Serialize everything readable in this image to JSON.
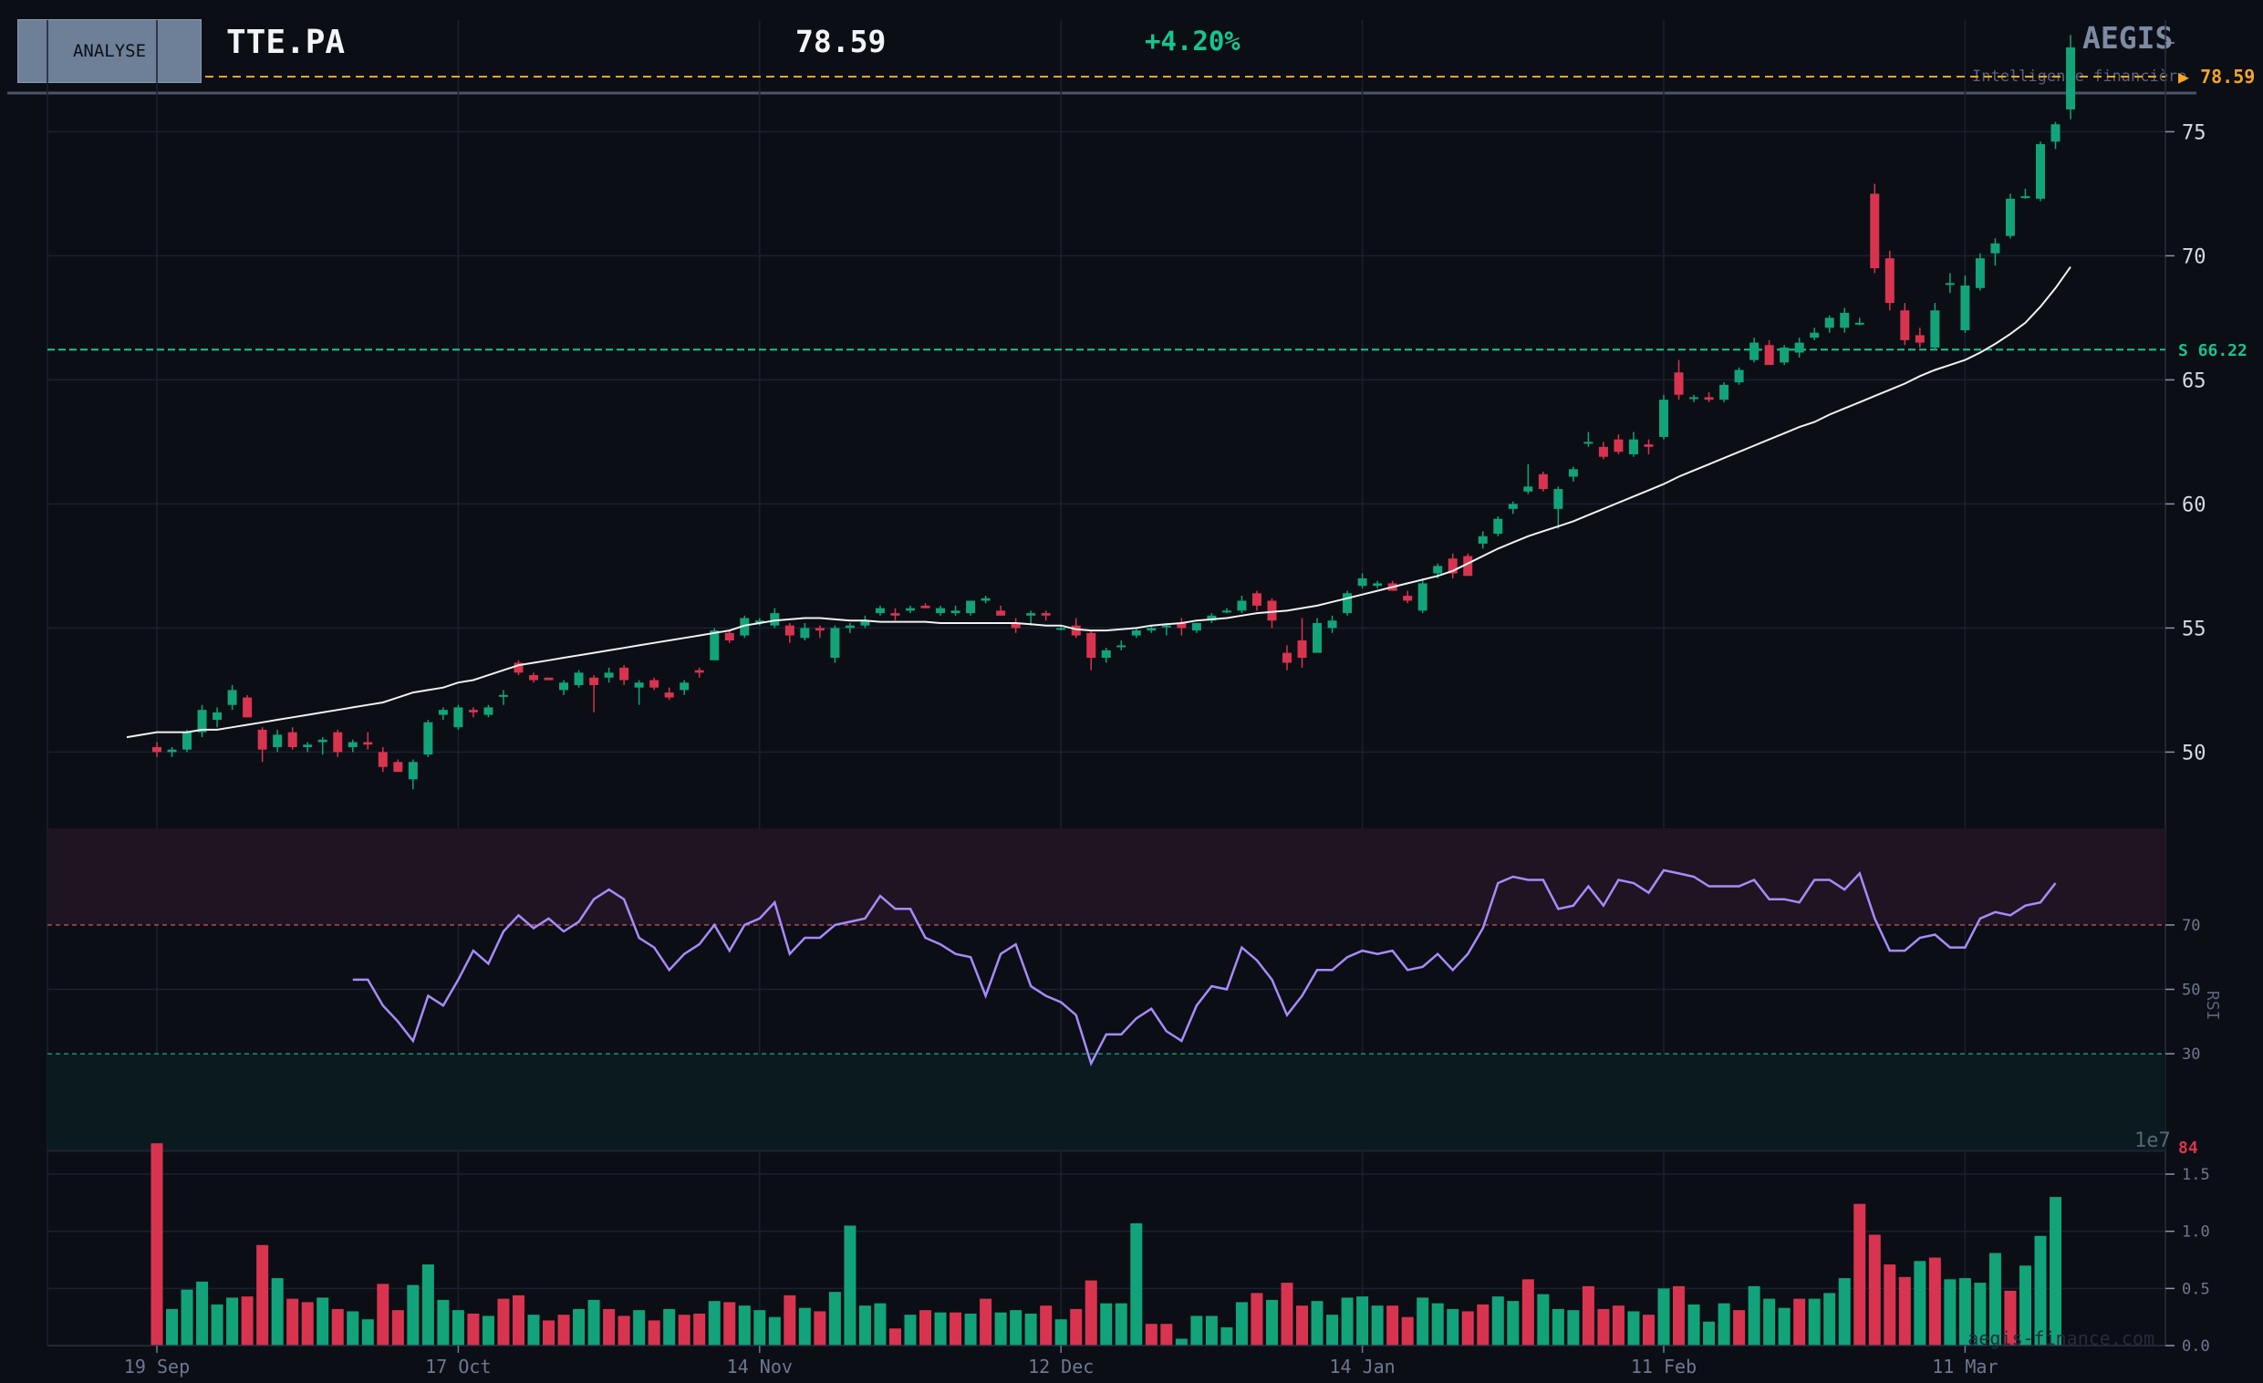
{
  "header": {
    "button_label": "ANALYSE",
    "ticker": "TTE.PA",
    "price": "78.59",
    "change": "+4.20%",
    "brand": "AEGIS",
    "tagline": "Intelligence financière"
  },
  "colors": {
    "background": "#0b0e15",
    "up": "#12a37a",
    "down": "#d9344f",
    "sma": "#f2f2f2",
    "rsi": "#a78bfa",
    "last_price": "#f5a524",
    "support": "#17c48f"
  },
  "chart_data": [
    {
      "type": "candlestick",
      "title": "TTE.PA",
      "x_tick_labels": [
        "19 Sep",
        "17 Oct",
        "14 Nov",
        "12 Dec",
        "14 Jan",
        "11 Feb",
        "11 Mar"
      ],
      "y_ticks": [
        50,
        55,
        60,
        65,
        70,
        75
      ],
      "ylim": [
        47,
        79.5
      ],
      "last_price": {
        "value": 78.59,
        "label": "▶ 78.59"
      },
      "support": {
        "value": 66.22,
        "label": "S  66.22"
      },
      "grid": true,
      "candles": [
        [
          50.2,
          50.4,
          49.8,
          50.0
        ],
        [
          50.0,
          50.2,
          49.8,
          50.1
        ],
        [
          50.1,
          50.9,
          50.0,
          50.8
        ],
        [
          50.8,
          51.9,
          50.6,
          51.7
        ],
        [
          51.3,
          51.8,
          51.0,
          51.6
        ],
        [
          51.9,
          52.7,
          51.7,
          52.5
        ],
        [
          52.2,
          52.3,
          51.4,
          51.4
        ],
        [
          50.9,
          51.0,
          49.6,
          50.1
        ],
        [
          50.2,
          50.9,
          50.0,
          50.7
        ],
        [
          50.8,
          51.0,
          50.1,
          50.2
        ],
        [
          50.2,
          50.4,
          50.0,
          50.3
        ],
        [
          50.4,
          50.6,
          49.9,
          50.5
        ],
        [
          50.8,
          50.9,
          49.8,
          50.0
        ],
        [
          50.2,
          50.5,
          50.0,
          50.4
        ],
        [
          50.4,
          50.8,
          50.1,
          50.3
        ],
        [
          50.0,
          50.2,
          49.2,
          49.4
        ],
        [
          49.6,
          49.7,
          49.2,
          49.2
        ],
        [
          48.9,
          49.7,
          48.5,
          49.6
        ],
        [
          49.9,
          51.3,
          49.8,
          51.2
        ],
        [
          51.5,
          51.8,
          51.3,
          51.7
        ],
        [
          51.0,
          51.9,
          50.9,
          51.8
        ],
        [
          51.7,
          51.8,
          51.4,
          51.6
        ],
        [
          51.5,
          51.9,
          51.4,
          51.8
        ],
        [
          52.3,
          52.5,
          51.9,
          52.3
        ],
        [
          53.6,
          53.7,
          53.1,
          53.2
        ],
        [
          53.1,
          53.2,
          52.8,
          52.9
        ],
        [
          53.0,
          53.0,
          52.9,
          52.9
        ],
        [
          52.5,
          52.9,
          52.3,
          52.8
        ],
        [
          52.7,
          53.3,
          52.6,
          53.2
        ],
        [
          53.0,
          53.1,
          51.6,
          52.7
        ],
        [
          53.0,
          53.4,
          52.8,
          53.2
        ],
        [
          53.4,
          53.5,
          52.7,
          52.9
        ],
        [
          52.6,
          52.9,
          51.9,
          52.8
        ],
        [
          52.9,
          53.0,
          52.5,
          52.6
        ],
        [
          52.4,
          52.6,
          52.1,
          52.2
        ],
        [
          52.5,
          52.9,
          52.3,
          52.8
        ],
        [
          53.3,
          53.4,
          53.0,
          53.2
        ],
        [
          53.7,
          55.0,
          53.7,
          54.9
        ],
        [
          54.8,
          54.9,
          54.4,
          54.5
        ],
        [
          54.7,
          55.5,
          54.6,
          55.4
        ],
        [
          55.2,
          55.4,
          55.1,
          55.3
        ],
        [
          55.1,
          55.8,
          55.0,
          55.6
        ],
        [
          55.1,
          55.2,
          54.4,
          54.7
        ],
        [
          54.6,
          55.2,
          54.5,
          55.0
        ],
        [
          55.0,
          55.1,
          54.6,
          54.9
        ],
        [
          53.8,
          55.1,
          53.6,
          55.0
        ],
        [
          55.0,
          55.2,
          54.8,
          55.1
        ],
        [
          55.1,
          55.5,
          55.0,
          55.3
        ],
        [
          55.6,
          55.9,
          55.5,
          55.8
        ],
        [
          55.6,
          55.8,
          55.3,
          55.5
        ],
        [
          55.7,
          55.9,
          55.6,
          55.8
        ],
        [
          55.9,
          56.0,
          55.8,
          55.8
        ],
        [
          55.6,
          55.9,
          55.5,
          55.8
        ],
        [
          55.6,
          55.9,
          55.5,
          55.7
        ],
        [
          55.6,
          56.1,
          55.5,
          56.1
        ],
        [
          56.1,
          56.3,
          56.0,
          56.2
        ],
        [
          55.7,
          55.9,
          55.5,
          55.5
        ],
        [
          55.2,
          55.4,
          54.8,
          55.0
        ],
        [
          55.5,
          55.7,
          55.1,
          55.6
        ],
        [
          55.6,
          55.7,
          55.3,
          55.5
        ],
        [
          55.0,
          55.1,
          54.9,
          55.0
        ],
        [
          55.1,
          55.4,
          54.6,
          54.7
        ],
        [
          54.8,
          54.9,
          53.3,
          53.8
        ],
        [
          53.8,
          54.2,
          53.6,
          54.1
        ],
        [
          54.3,
          54.5,
          54.1,
          54.3
        ],
        [
          54.7,
          55.0,
          54.6,
          54.9
        ],
        [
          54.9,
          55.1,
          54.8,
          55.0
        ],
        [
          55.1,
          55.2,
          54.7,
          55.1
        ],
        [
          55.2,
          55.4,
          54.7,
          55.0
        ],
        [
          54.9,
          55.2,
          54.8,
          55.2
        ],
        [
          55.3,
          55.6,
          55.2,
          55.5
        ],
        [
          55.7,
          55.8,
          55.6,
          55.7
        ],
        [
          55.7,
          56.3,
          55.6,
          56.1
        ],
        [
          56.4,
          56.5,
          55.7,
          55.9
        ],
        [
          56.1,
          56.2,
          55.0,
          55.3
        ],
        [
          54.0,
          54.3,
          53.3,
          53.6
        ],
        [
          54.5,
          55.4,
          53.4,
          53.8
        ],
        [
          54.0,
          55.4,
          54.0,
          55.2
        ],
        [
          55.0,
          55.5,
          54.8,
          55.3
        ],
        [
          55.6,
          56.5,
          55.5,
          56.4
        ],
        [
          56.7,
          57.2,
          56.6,
          57.0
        ],
        [
          56.7,
          56.9,
          56.6,
          56.8
        ],
        [
          56.8,
          56.9,
          56.5,
          56.5
        ],
        [
          56.3,
          56.5,
          56.0,
          56.1
        ],
        [
          55.7,
          57.0,
          55.6,
          56.8
        ],
        [
          57.2,
          57.6,
          57.0,
          57.5
        ],
        [
          57.8,
          58.0,
          57.0,
          57.2
        ],
        [
          57.9,
          58.0,
          57.1,
          57.1
        ],
        [
          58.4,
          58.9,
          58.2,
          58.7
        ],
        [
          58.8,
          59.5,
          58.7,
          59.4
        ],
        [
          59.8,
          60.1,
          59.6,
          60.0
        ],
        [
          60.5,
          61.6,
          60.4,
          60.7
        ],
        [
          61.2,
          61.3,
          60.5,
          60.6
        ],
        [
          59.8,
          60.7,
          59.0,
          60.6
        ],
        [
          61.1,
          61.5,
          60.9,
          61.4
        ],
        [
          62.5,
          62.9,
          62.3,
          62.5
        ],
        [
          62.3,
          62.5,
          61.8,
          61.9
        ],
        [
          62.6,
          62.8,
          62.0,
          62.1
        ],
        [
          62.0,
          62.9,
          61.9,
          62.6
        ],
        [
          62.4,
          62.6,
          62.0,
          62.3
        ],
        [
          62.7,
          64.4,
          62.6,
          64.2
        ],
        [
          65.3,
          65.8,
          64.2,
          64.4
        ],
        [
          64.3,
          64.4,
          64.1,
          64.3
        ],
        [
          64.3,
          64.5,
          64.1,
          64.2
        ],
        [
          64.2,
          64.9,
          64.1,
          64.8
        ],
        [
          64.9,
          65.5,
          64.8,
          65.4
        ],
        [
          65.8,
          66.7,
          65.7,
          66.5
        ],
        [
          66.4,
          66.6,
          65.6,
          65.6
        ],
        [
          65.7,
          66.4,
          65.6,
          66.3
        ],
        [
          66.1,
          66.7,
          65.9,
          66.5
        ],
        [
          66.7,
          67.1,
          66.6,
          66.9
        ],
        [
          67.1,
          67.6,
          66.9,
          67.5
        ],
        [
          67.1,
          67.9,
          66.9,
          67.7
        ],
        [
          67.3,
          67.5,
          67.2,
          67.3
        ],
        [
          72.5,
          72.9,
          69.3,
          69.5
        ],
        [
          69.9,
          70.2,
          67.8,
          68.1
        ],
        [
          67.8,
          68.1,
          66.4,
          66.6
        ],
        [
          66.8,
          67.1,
          66.3,
          66.5
        ],
        [
          66.3,
          68.1,
          66.2,
          67.8
        ],
        [
          68.9,
          69.3,
          68.5,
          68.9
        ],
        [
          67.0,
          69.2,
          66.9,
          68.8
        ],
        [
          68.7,
          70.1,
          68.6,
          69.9
        ],
        [
          70.1,
          70.7,
          69.6,
          70.5
        ],
        [
          70.8,
          72.5,
          70.7,
          72.3
        ],
        [
          72.4,
          72.7,
          72.3,
          72.4
        ],
        [
          72.3,
          74.6,
          72.2,
          74.5
        ],
        [
          74.6,
          75.4,
          74.3,
          75.3
        ],
        [
          75.9,
          78.9,
          75.5,
          78.4
        ]
      ],
      "sma_20": [
        50.6,
        50.7,
        50.8,
        50.8,
        50.8,
        50.9,
        50.9,
        51.0,
        51.1,
        51.2,
        51.3,
        51.4,
        51.5,
        51.6,
        51.7,
        51.8,
        51.9,
        52.0,
        52.2,
        52.4,
        52.5,
        52.6,
        52.8,
        52.9,
        53.1,
        53.3,
        53.5,
        53.6,
        53.7,
        53.8,
        53.9,
        54.0,
        54.1,
        54.2,
        54.3,
        54.4,
        54.5,
        54.6,
        54.7,
        54.8,
        54.9,
        55.1,
        55.2,
        55.3,
        55.35,
        55.4,
        55.4,
        55.35,
        55.3,
        55.3,
        55.25,
        55.25,
        55.25,
        55.25,
        55.2,
        55.2,
        55.2,
        55.2,
        55.2,
        55.2,
        55.15,
        55.1,
        55.1,
        54.95,
        54.9,
        54.9,
        54.95,
        55.0,
        55.1,
        55.15,
        55.2,
        55.3,
        55.35,
        55.4,
        55.5,
        55.6,
        55.65,
        55.7,
        55.8,
        55.9,
        56.05,
        56.2,
        56.35,
        56.5,
        56.65,
        56.8,
        56.95,
        57.1,
        57.3,
        57.6,
        57.9,
        58.2,
        58.45,
        58.7,
        58.9,
        59.1,
        59.3,
        59.55,
        59.8,
        60.05,
        60.3,
        60.55,
        60.8,
        61.1,
        61.35,
        61.6,
        61.85,
        62.1,
        62.35,
        62.6,
        62.85,
        63.1,
        63.3,
        63.6,
        63.85,
        64.1,
        64.35,
        64.6,
        64.85,
        65.15,
        65.4,
        65.6,
        65.8,
        66.1,
        66.45,
        66.85,
        67.3,
        67.95,
        68.7,
        69.55
      ]
    },
    {
      "type": "line",
      "ylabel": "RSI",
      "y_ticks": [
        30,
        50,
        70
      ],
      "ylim": [
        0,
        100
      ],
      "overbought": 70,
      "oversold": 30,
      "values": [
        null,
        null,
        null,
        null,
        null,
        null,
        null,
        null,
        null,
        null,
        null,
        null,
        null,
        53.0,
        53.0,
        45.0,
        40.0,
        34.0,
        48.0,
        45.0,
        53.0,
        62.0,
        58.0,
        68.0,
        73.0,
        69.0,
        72.0,
        68.0,
        71.0,
        78.0,
        81.0,
        78.0,
        66.0,
        63.0,
        56.0,
        61.0,
        64.0,
        70.0,
        62.0,
        70.0,
        72.0,
        77.0,
        61.0,
        66.0,
        66.0,
        70.0,
        71.0,
        72.0,
        79.0,
        75.0,
        75.0,
        66.0,
        64.0,
        61.0,
        60.0,
        48.0,
        61.0,
        64.0,
        51.0,
        48.0,
        46.0,
        42.0,
        27.0,
        36.0,
        36.0,
        41.0,
        44.0,
        37.0,
        34.0,
        45.0,
        51.0,
        50.0,
        63.0,
        59.0,
        53.0,
        42.0,
        48.0,
        56.0,
        56.0,
        60.0,
        62.0,
        61.0,
        62.0,
        56.0,
        57.0,
        61.0,
        56.0,
        61.0,
        69.0,
        83.0,
        85.0,
        84.0,
        84.0,
        75.0,
        76.0,
        82.0,
        76.0,
        84.0,
        83.0,
        80.0,
        87.0,
        86.0,
        85.0,
        82.0,
        82.0,
        82.0,
        84.0,
        78.0,
        78.0,
        77.0,
        84.0,
        84.0,
        81.0,
        86.0,
        72.0,
        62.0,
        62.0,
        66.0,
        67.0,
        63.0,
        63.0,
        72.0,
        74.0,
        73.0,
        76.0,
        77.0,
        83.0
      ]
    },
    {
      "type": "bar",
      "ylabel": "1e7",
      "y_ticks": [
        "0.0",
        "0.5",
        "1.0",
        "1.5"
      ],
      "ylim": [
        0,
        1.7
      ],
      "scale_label": "1e7",
      "marker_label": "84",
      "values": [
        1.77,
        0.32,
        0.49,
        0.56,
        0.36,
        0.42,
        0.43,
        0.88,
        0.59,
        0.41,
        0.38,
        0.42,
        0.32,
        0.3,
        0.23,
        0.54,
        0.31,
        0.53,
        0.71,
        0.4,
        0.31,
        0.28,
        0.26,
        0.41,
        0.44,
        0.27,
        0.22,
        0.27,
        0.32,
        0.4,
        0.32,
        0.26,
        0.31,
        0.22,
        0.32,
        0.27,
        0.28,
        0.39,
        0.38,
        0.35,
        0.31,
        0.25,
        0.44,
        0.33,
        0.3,
        0.47,
        1.05,
        0.35,
        0.37,
        0.15,
        0.27,
        0.31,
        0.29,
        0.29,
        0.28,
        0.41,
        0.29,
        0.31,
        0.28,
        0.35,
        0.23,
        0.32,
        0.57,
        0.37,
        0.37,
        1.07,
        0.19,
        0.19,
        0.06,
        0.26,
        0.26,
        0.16,
        0.38,
        0.46,
        0.4,
        0.55,
        0.35,
        0.39,
        0.27,
        0.42,
        0.43,
        0.35,
        0.35,
        0.25,
        0.42,
        0.37,
        0.32,
        0.3,
        0.36,
        0.43,
        0.39,
        0.58,
        0.45,
        0.32,
        0.31,
        0.52,
        0.32,
        0.35,
        0.3,
        0.27,
        0.5,
        0.52,
        0.36,
        0.21,
        0.37,
        0.31,
        0.52,
        0.41,
        0.33,
        0.41,
        0.41,
        0.46,
        0.59,
        1.24,
        0.97,
        0.71,
        0.6,
        0.74,
        0.77,
        0.58,
        0.59,
        0.55,
        0.81,
        0.48,
        0.7,
        0.96,
        1.3
      ],
      "colors": [
        "down",
        "up",
        "up",
        "up",
        "up",
        "up",
        "down",
        "down",
        "up",
        "down",
        "down",
        "up",
        "down",
        "up",
        "up",
        "down",
        "down",
        "up",
        "up",
        "up",
        "up",
        "down",
        "up",
        "down",
        "down",
        "up",
        "down",
        "down",
        "up",
        "up",
        "down",
        "down",
        "up",
        "down",
        "up",
        "down",
        "down",
        "up",
        "down",
        "up",
        "up",
        "up",
        "down",
        "up",
        "down",
        "up",
        "up",
        "up",
        "up",
        "down",
        "up",
        "down",
        "up",
        "down",
        "up",
        "down",
        "up",
        "up",
        "up",
        "down",
        "up",
        "down",
        "down",
        "up",
        "up",
        "up",
        "down",
        "down",
        "up",
        "up",
        "up",
        "up",
        "up",
        "down",
        "up",
        "down",
        "down",
        "up",
        "up",
        "up",
        "up",
        "up",
        "down",
        "down",
        "up",
        "up",
        "up",
        "down",
        "down",
        "up",
        "up",
        "down",
        "up",
        "up",
        "up",
        "down",
        "down",
        "down",
        "up",
        "down",
        "up",
        "down",
        "up",
        "up",
        "up",
        "down",
        "up",
        "up",
        "up",
        "down",
        "up",
        "up",
        "up",
        "down",
        "down",
        "down",
        "down",
        "up",
        "down",
        "up",
        "up",
        "up",
        "up",
        "down",
        "up",
        "up",
        "up"
      ]
    }
  ],
  "footer": {
    "watermark": "aegis-finance.com"
  }
}
